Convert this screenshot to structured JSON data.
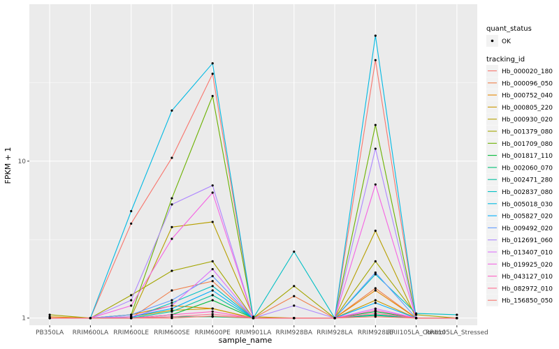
{
  "chart_data": {
    "type": "line",
    "xlabel": "sample_name",
    "ylabel": "FPKM + 1",
    "y_scale": "log10",
    "ylim": [
      0.9,
      100
    ],
    "y_ticks": [
      1,
      10
    ],
    "y_tick_labels": [
      "1",
      "10"
    ],
    "grid": true,
    "legend_position": "right",
    "categories": [
      "PB350LA",
      "RRIM600LA",
      "RRIM600LE",
      "RRIM600SE",
      "RRIM600PE",
      "RRIM901LA",
      "RRIM928BA",
      "RRIM928LA",
      "RRIM928LE",
      "RRII105LA_Control",
      "RRII105LA_Stressed"
    ],
    "point_legend": {
      "title": "quant_status",
      "items": [
        {
          "label": "OK",
          "color": "#000000"
        }
      ]
    },
    "color_legend_title": "tracking_id",
    "series": [
      {
        "name": "Hb_000020_180",
        "color": "#F8766D",
        "values": [
          1.0,
          1.0,
          4.0,
          10.5,
          36.0,
          1.0,
          1.0,
          1.0,
          44.0,
          1.0,
          1.0
        ]
      },
      {
        "name": "Hb_000096_050",
        "color": "#F07F4B",
        "values": [
          1.0,
          1.0,
          1.0,
          1.5,
          1.72,
          1.0,
          1.38,
          1.0,
          1.55,
          1.0,
          1.0
        ]
      },
      {
        "name": "Hb_000752_040",
        "color": "#E58700",
        "values": [
          1.02,
          1.0,
          1.05,
          1.2,
          1.15,
          1.0,
          1.0,
          1.0,
          1.5,
          1.0,
          1.0
        ]
      },
      {
        "name": "Hb_000805_220",
        "color": "#C99800",
        "values": [
          1.0,
          1.0,
          1.02,
          1.12,
          1.15,
          1.0,
          1.0,
          1.0,
          1.3,
          1.0,
          1.0
        ]
      },
      {
        "name": "Hb_000930_020",
        "color": "#B79F00",
        "values": [
          1.0,
          1.0,
          1.02,
          3.8,
          4.1,
          1.02,
          1.0,
          1.0,
          3.6,
          1.0,
          1.0
        ]
      },
      {
        "name": "Hb_001379_080",
        "color": "#A3A500",
        "values": [
          1.05,
          1.0,
          1.4,
          2.0,
          2.3,
          1.0,
          1.6,
          1.0,
          2.3,
          1.05,
          1.0
        ]
      },
      {
        "name": "Hb_001709_080",
        "color": "#6BB100",
        "values": [
          1.0,
          1.0,
          1.05,
          5.8,
          26.0,
          1.0,
          1.0,
          1.0,
          17.0,
          1.0,
          1.0
        ]
      },
      {
        "name": "Hb_001817_110",
        "color": "#00BA38",
        "values": [
          1.0,
          1.0,
          1.0,
          1.05,
          1.3,
          1.0,
          1.0,
          1.0,
          1.1,
          1.0,
          1.0
        ]
      },
      {
        "name": "Hb_002060_070",
        "color": "#00BF74",
        "values": [
          1.0,
          1.0,
          1.0,
          1.02,
          1.02,
          1.0,
          1.0,
          1.0,
          1.04,
          1.0,
          1.0
        ]
      },
      {
        "name": "Hb_002471_280",
        "color": "#00C19F",
        "values": [
          1.0,
          1.0,
          1.0,
          1.1,
          1.4,
          1.0,
          1.0,
          1.0,
          1.05,
          1.0,
          1.0
        ]
      },
      {
        "name": "Hb_002837_080",
        "color": "#00BFC4",
        "values": [
          1.0,
          1.0,
          1.0,
          1.25,
          1.6,
          1.0,
          2.65,
          1.0,
          1.9,
          1.07,
          1.05
        ]
      },
      {
        "name": "Hb_005018_030",
        "color": "#00B9E3",
        "values": [
          1.0,
          1.0,
          4.8,
          21.0,
          42.0,
          1.0,
          1.0,
          1.0,
          63.0,
          1.0,
          1.0
        ]
      },
      {
        "name": "Hb_005827_020",
        "color": "#00ADFA",
        "values": [
          1.0,
          1.0,
          1.02,
          1.15,
          1.5,
          1.0,
          1.0,
          1.0,
          1.25,
          1.0,
          1.0
        ]
      },
      {
        "name": "Hb_009492_020",
        "color": "#619CFF",
        "values": [
          1.0,
          1.0,
          1.05,
          1.3,
          1.85,
          1.0,
          1.0,
          1.0,
          1.95,
          1.0,
          1.0
        ]
      },
      {
        "name": "Hb_012691_060",
        "color": "#AE87FF",
        "values": [
          1.0,
          1.0,
          1.3,
          5.3,
          7.0,
          1.0,
          1.2,
          1.0,
          12.0,
          1.0,
          1.0
        ]
      },
      {
        "name": "Hb_013407_010",
        "color": "#DB72FB",
        "values": [
          1.0,
          1.0,
          1.02,
          1.2,
          2.05,
          1.0,
          1.0,
          1.0,
          1.15,
          1.0,
          1.0
        ]
      },
      {
        "name": "Hb_019925_020",
        "color": "#F564E3",
        "values": [
          1.0,
          1.0,
          1.2,
          3.2,
          6.3,
          1.0,
          1.0,
          1.0,
          7.1,
          1.0,
          1.0
        ]
      },
      {
        "name": "Hb_043127_010",
        "color": "#FF61C3",
        "values": [
          1.0,
          1.0,
          1.0,
          1.05,
          1.1,
          1.0,
          1.0,
          1.0,
          1.12,
          1.0,
          1.0
        ]
      },
      {
        "name": "Hb_082972_010",
        "color": "#FF6C91",
        "values": [
          1.0,
          1.0,
          1.0,
          1.02,
          1.06,
          1.0,
          1.0,
          1.0,
          1.07,
          1.0,
          1.0
        ]
      },
      {
        "name": "Hb_156850_050",
        "color": "#F8766D",
        "values": [
          1.0,
          1.0,
          1.0,
          1.0,
          1.03,
          1.0,
          1.0,
          1.0,
          1.02,
          1.0,
          1.0
        ]
      }
    ]
  }
}
